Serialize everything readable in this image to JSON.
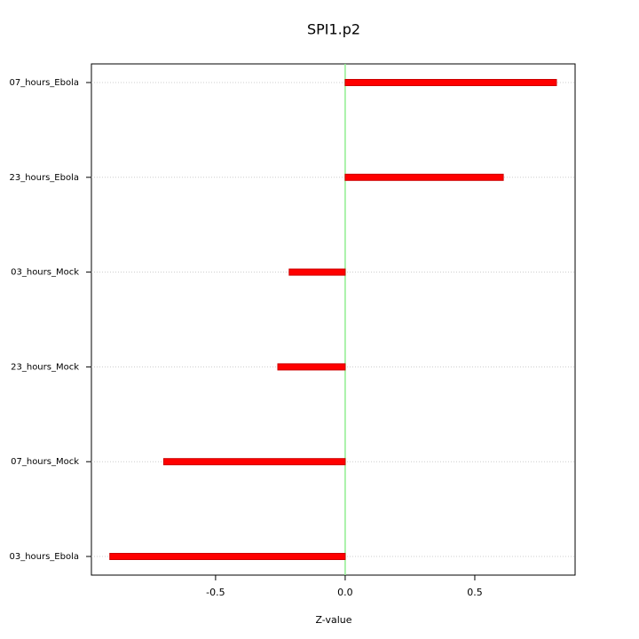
{
  "chart_data": {
    "type": "bar",
    "orientation": "horizontal",
    "title": "SPI1.p2",
    "x_label": "Z-value",
    "categories": [
      "07_hours_Ebola",
      "23_hours_Ebola",
      "03_hours_Mock",
      "23_hours_Mock",
      "07_hours_Mock",
      "03_hours_Ebola"
    ],
    "values": [
      0.815,
      0.61,
      -0.216,
      -0.26,
      -0.7,
      -0.908
    ],
    "color": "#ff0000",
    "zero_line_color": "#90ee90",
    "xlim": [
      -0.979,
      0.887
    ],
    "xticks": [
      -0.5,
      {
        "value": 0,
        "label": "0.0"
      },
      0.5
    ],
    "grid": true
  }
}
